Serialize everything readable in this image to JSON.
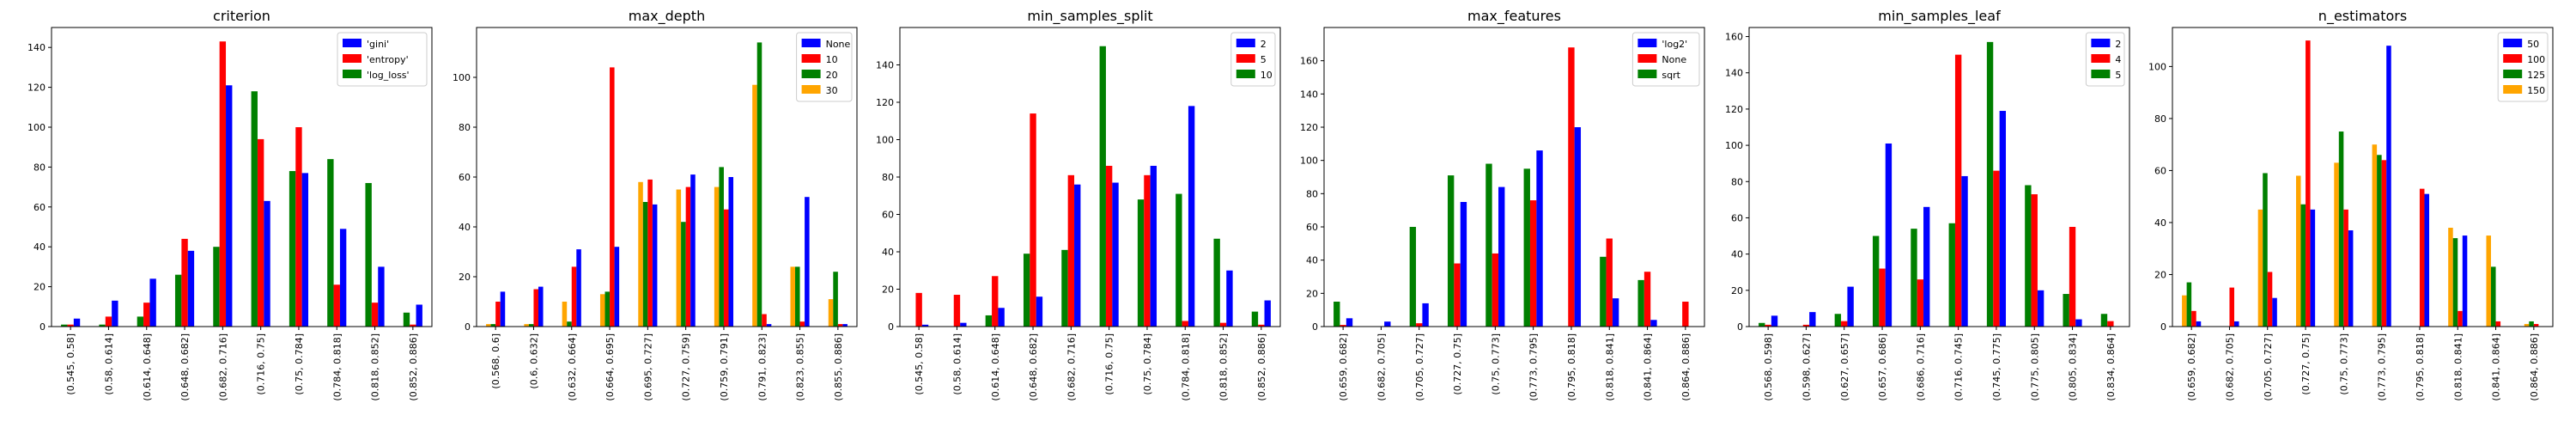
{
  "chart_data": [
    {
      "type": "bar",
      "title": "criterion",
      "ylim": [
        0,
        150
      ],
      "yticks": [
        0,
        20,
        40,
        60,
        80,
        100,
        120,
        140
      ],
      "legend_position": "top-right",
      "categories": [
        "(0.545, 0.58]",
        "(0.58, 0.614]",
        "(0.614, 0.648]",
        "(0.648, 0.682]",
        "(0.682, 0.716]",
        "(0.716, 0.75]",
        "(0.75, 0.784]",
        "(0.784, 0.818]",
        "(0.818, 0.852]",
        "(0.852, 0.886]"
      ],
      "series": [
        {
          "name": "'log_loss'",
          "color": "#008000",
          "values": [
            1,
            1,
            5,
            26,
            40,
            118,
            78,
            84,
            72,
            7
          ]
        },
        {
          "name": "'entropy'",
          "color": "#ff0000",
          "values": [
            1,
            5,
            12,
            44,
            143,
            94,
            100,
            21,
            12,
            1
          ]
        },
        {
          "name": "'gini'",
          "color": "#0000ff",
          "values": [
            4,
            13,
            24,
            38,
            121,
            63,
            77,
            49,
            30,
            11
          ]
        }
      ],
      "legend_order": [
        2,
        1,
        0
      ]
    },
    {
      "type": "bar",
      "title": "max_depth",
      "ylim": [
        0,
        120
      ],
      "yticks": [
        0,
        20,
        40,
        60,
        80,
        100
      ],
      "legend_position": "top-right",
      "categories": [
        "(0.568, 0.6]",
        "(0.6, 0.632]",
        "(0.632, 0.664]",
        "(0.664, 0.695]",
        "(0.695, 0.727]",
        "(0.727, 0.759]",
        "(0.759, 0.791]",
        "(0.791, 0.823]",
        "(0.823, 0.855]",
        "(0.855, 0.886]"
      ],
      "series": [
        {
          "name": "30",
          "color": "#ffa500",
          "values": [
            1,
            1,
            10,
            13,
            58,
            55,
            56,
            97,
            24,
            11
          ]
        },
        {
          "name": "20",
          "color": "#008000",
          "values": [
            1,
            1,
            2,
            14,
            50,
            42,
            64,
            114,
            24,
            22
          ]
        },
        {
          "name": "10",
          "color": "#ff0000",
          "values": [
            10,
            15,
            24,
            104,
            59,
            56,
            47,
            5,
            2,
            1
          ]
        },
        {
          "name": "None",
          "color": "#0000ff",
          "values": [
            14,
            16,
            31,
            32,
            49,
            61,
            60,
            1,
            52,
            1
          ]
        }
      ],
      "legend_order": [
        3,
        2,
        1,
        0
      ]
    },
    {
      "type": "bar",
      "title": "min_samples_split",
      "ylim": [
        0,
        160
      ],
      "yticks": [
        0,
        20,
        40,
        60,
        80,
        100,
        120,
        140
      ],
      "legend_position": "top-right",
      "categories": [
        "(0.545, 0.58]",
        "(0.58, 0.614]",
        "(0.614, 0.648]",
        "(0.648, 0.682]",
        "(0.682, 0.716]",
        "(0.716, 0.75]",
        "(0.75, 0.784]",
        "(0.784, 0.818]",
        "(0.818, 0.852]",
        "(0.852, 0.886]"
      ],
      "series": [
        {
          "name": "10",
          "color": "#008000",
          "values": [
            0,
            0,
            6,
            39,
            41,
            150,
            68,
            71,
            47,
            8
          ]
        },
        {
          "name": "5",
          "color": "#ff0000",
          "values": [
            18,
            17,
            27,
            114,
            81,
            86,
            81,
            3,
            2,
            1
          ]
        },
        {
          "name": "2",
          "color": "#0000ff",
          "values": [
            1,
            2,
            10,
            16,
            76,
            77,
            86,
            118,
            30,
            14
          ]
        }
      ],
      "legend_order": [
        2,
        1,
        0
      ]
    },
    {
      "type": "bar",
      "title": "max_features",
      "ylim": [
        0,
        180
      ],
      "yticks": [
        0,
        20,
        40,
        60,
        80,
        100,
        120,
        140,
        160
      ],
      "legend_position": "top-right",
      "categories": [
        "(0.659, 0.682]",
        "(0.682, 0.705]",
        "(0.705, 0.727]",
        "(0.727, 0.75]",
        "(0.75, 0.773]",
        "(0.773, 0.795]",
        "(0.795, 0.818]",
        "(0.818, 0.841]",
        "(0.841, 0.864]",
        "(0.864, 0.886]"
      ],
      "series": [
        {
          "name": "sqrt",
          "color": "#008000",
          "values": [
            15,
            0,
            60,
            91,
            98,
            95,
            0,
            42,
            28,
            0
          ]
        },
        {
          "name": "None",
          "color": "#ff0000",
          "values": [
            1,
            0,
            2,
            38,
            44,
            76,
            168,
            53,
            33,
            15
          ]
        },
        {
          "name": "'log2'",
          "color": "#0000ff",
          "values": [
            5,
            3,
            14,
            75,
            84,
            106,
            120,
            17,
            4,
            0
          ]
        }
      ],
      "legend_order": [
        2,
        1,
        0
      ]
    },
    {
      "type": "bar",
      "title": "min_samples_leaf",
      "ylim": [
        0,
        165
      ],
      "yticks": [
        0,
        20,
        40,
        60,
        80,
        100,
        120,
        140,
        160
      ],
      "legend_position": "top-right",
      "categories": [
        "(0.568, 0.598]",
        "(0.598, 0.627]",
        "(0.627, 0.657]",
        "(0.657, 0.686]",
        "(0.686, 0.716]",
        "(0.716, 0.745]",
        "(0.745, 0.775]",
        "(0.775, 0.805]",
        "(0.805, 0.834]",
        "(0.834, 0.864]"
      ],
      "series": [
        {
          "name": "5",
          "color": "#008000",
          "values": [
            2,
            0,
            7,
            50,
            54,
            57,
            157,
            78,
            18,
            7
          ]
        },
        {
          "name": "4",
          "color": "#ff0000",
          "values": [
            1,
            1,
            3,
            32,
            26,
            150,
            86,
            73,
            55,
            3
          ]
        },
        {
          "name": "2",
          "color": "#0000ff",
          "values": [
            6,
            8,
            22,
            101,
            66,
            83,
            119,
            20,
            4,
            0
          ]
        }
      ],
      "legend_order": [
        2,
        1,
        0
      ]
    },
    {
      "type": "bar",
      "title": "n_estimators",
      "ylim": [
        0,
        115
      ],
      "yticks": [
        0,
        20,
        40,
        60,
        80,
        100
      ],
      "legend_position": "top-right",
      "categories": [
        "(0.659, 0.682]",
        "(0.682, 0.705]",
        "(0.705, 0.727]",
        "(0.727, 0.75]",
        "(0.75, 0.773]",
        "(0.773, 0.795]",
        "(0.795, 0.818]",
        "(0.818, 0.841]",
        "(0.841, 0.864]",
        "(0.864, 0.886]"
      ],
      "series": [
        {
          "name": "150",
          "color": "#ffa500",
          "values": [
            12,
            0,
            45,
            58,
            63,
            70,
            0,
            38,
            35,
            1
          ]
        },
        {
          "name": "125",
          "color": "#008000",
          "values": [
            17,
            0,
            59,
            47,
            75,
            66,
            0,
            34,
            23,
            2
          ]
        },
        {
          "name": "100",
          "color": "#ff0000",
          "values": [
            6,
            15,
            21,
            110,
            45,
            64,
            53,
            6,
            2,
            1
          ]
        },
        {
          "name": "50",
          "color": "#0000ff",
          "values": [
            2,
            2,
            11,
            45,
            37,
            108,
            51,
            35,
            0,
            0
          ]
        }
      ],
      "legend_order": [
        3,
        2,
        1,
        0
      ]
    }
  ]
}
